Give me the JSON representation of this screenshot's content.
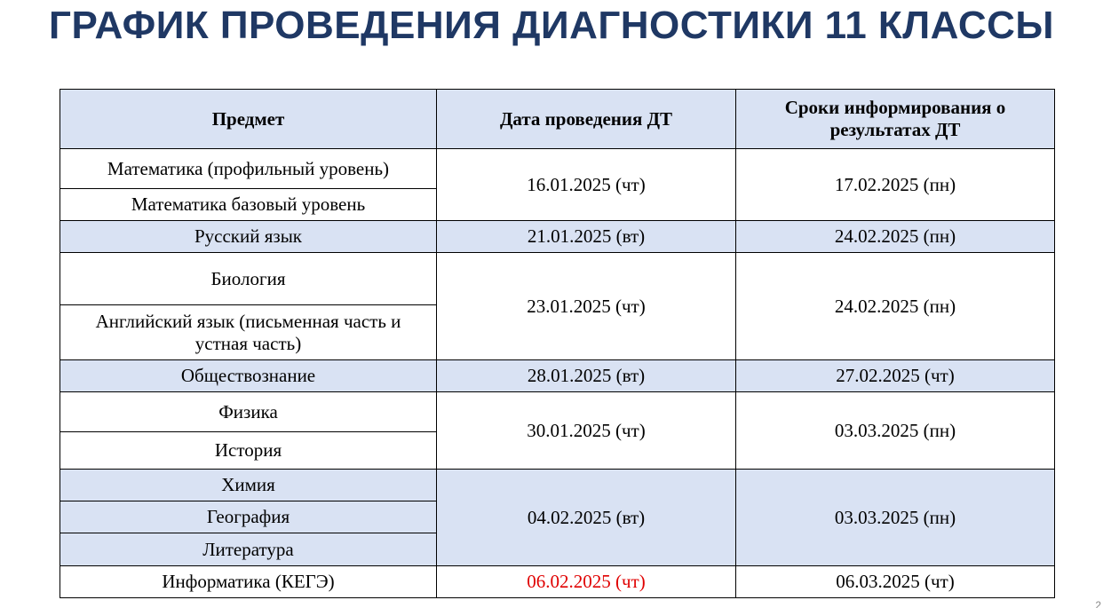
{
  "title": "ГРАФИК ПРОВЕДЕНИЯ ДИАГНОСТИКИ 11 КЛАССЫ",
  "headers": {
    "subject": "Предмет",
    "date": "Дата проведения ДТ",
    "results": "Сроки информирования о результатах ДТ"
  },
  "groups": [
    {
      "subjects": [
        "Математика (профильный уровень)",
        "Математика базовый уровень"
      ],
      "date": "16.01.2025 (чт)",
      "results": "17.02.2025 (пн)"
    },
    {
      "subjects": [
        "Русский язык"
      ],
      "date": "21.01.2025 (вт)",
      "results": "24.02.2025 (пн)"
    },
    {
      "subjects": [
        "Биология",
        "Английский язык (письменная часть и устная часть)"
      ],
      "date": "23.01.2025 (чт)",
      "results": "24.02.2025 (пн)"
    },
    {
      "subjects": [
        "Обществознание"
      ],
      "date": "28.01.2025 (вт)",
      "results": "27.02.2025 (чт)"
    },
    {
      "subjects": [
        "Физика",
        "История"
      ],
      "date": "30.01.2025 (чт)",
      "results": "03.03.2025 (пн)"
    },
    {
      "subjects": [
        "Химия",
        "География",
        "Литература"
      ],
      "date": "04.02.2025 (вт)",
      "results": "03.03.2025 (пн)"
    },
    {
      "subjects": [
        "Информатика (КЕГЭ)"
      ],
      "date": "06.02.2025 (чт)",
      "results": "06.03.2025 (чт)"
    }
  ],
  "page_number": "2",
  "colors": {
    "title": "#1f3864",
    "shaded": "#d9e2f3",
    "highlight": "#e00000"
  }
}
